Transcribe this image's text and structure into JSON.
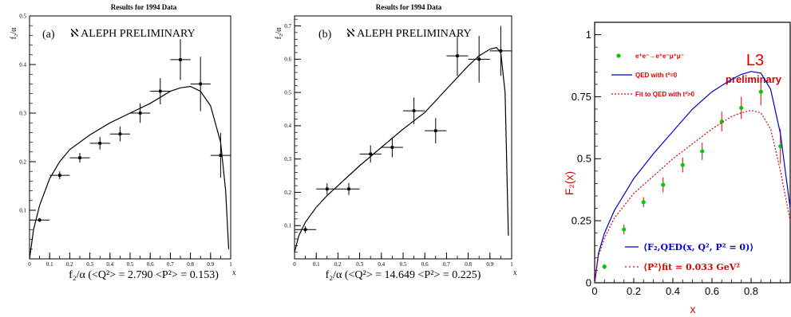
{
  "chart_data": [
    {
      "type": "scatter",
      "title": "Results for 1994 Data",
      "panel_label": "(a)",
      "experiment_label": "ℵ ALEPH PRELIMINARY",
      "xlabel": "x",
      "ylabel": "f₂/α",
      "axis_caption": "f₂/α (<Q²> =  2.790 <P²> = 0.153)",
      "xlim": [
        0,
        1
      ],
      "ylim": [
        0,
        0.5
      ],
      "x_ticks": [
        "0",
        "0.1",
        "0.2",
        "0.3",
        "0.4",
        "0.5",
        "0.6",
        "0.7",
        "0.8",
        "0.9",
        "1"
      ],
      "y_ticks": [
        "0.1",
        "0.2",
        "0.3",
        "0.4",
        "0.5"
      ],
      "series": [
        {
          "type": "points_with_errors",
          "x": [
            0.05,
            0.15,
            0.25,
            0.35,
            0.45,
            0.55,
            0.65,
            0.75,
            0.85,
            0.95
          ],
          "y": [
            0.08,
            0.172,
            0.208,
            0.238,
            0.257,
            0.3,
            0.345,
            0.41,
            0.36,
            0.213
          ],
          "xerr": [
            0.05,
            0.05,
            0.05,
            0.05,
            0.05,
            0.05,
            0.05,
            0.05,
            0.05,
            0.05
          ],
          "yerr": [
            0.004,
            0.008,
            0.01,
            0.013,
            0.015,
            0.02,
            0.027,
            0.042,
            0.056,
            0.046
          ]
        },
        {
          "type": "curve",
          "x": [
            0.0,
            0.02,
            0.05,
            0.1,
            0.15,
            0.2,
            0.3,
            0.4,
            0.5,
            0.6,
            0.7,
            0.75,
            0.8,
            0.85,
            0.9,
            0.95,
            0.975,
            0.99
          ],
          "y": [
            0.0,
            0.06,
            0.11,
            0.165,
            0.2,
            0.225,
            0.255,
            0.28,
            0.3,
            0.32,
            0.345,
            0.352,
            0.355,
            0.345,
            0.315,
            0.24,
            0.14,
            0.02
          ]
        }
      ]
    },
    {
      "type": "scatter",
      "title": "Results for 1994 Data",
      "panel_label": "(b)",
      "experiment_label": "ℵ ALEPH PRELIMINARY",
      "xlabel": "x",
      "ylabel": "f₂/α",
      "axis_caption": "f₂/α (<Q²> = 14.649 <P²> = 0.225)",
      "xlim": [
        0,
        1
      ],
      "ylim": [
        0,
        0.73
      ],
      "x_ticks": [
        "0",
        "0.1",
        "0.2",
        "0.3",
        "0.4",
        "0.5",
        "0.6",
        "0.7",
        "0.8",
        "0.9",
        "1"
      ],
      "y_ticks": [
        "0.1",
        "0.2",
        "0.3",
        "0.4",
        "0.5",
        "0.6",
        "0.7"
      ],
      "series": [
        {
          "type": "points_with_errors",
          "x": [
            0.05,
            0.15,
            0.25,
            0.35,
            0.45,
            0.55,
            0.65,
            0.75,
            0.85,
            0.95
          ],
          "y": [
            0.088,
            0.21,
            0.21,
            0.315,
            0.335,
            0.445,
            0.385,
            0.61,
            0.6,
            0.625
          ],
          "xerr": [
            0.05,
            0.05,
            0.05,
            0.05,
            0.05,
            0.05,
            0.05,
            0.05,
            0.05,
            0.05
          ],
          "yerr": [
            0.01,
            0.017,
            0.018,
            0.026,
            0.03,
            0.04,
            0.038,
            0.06,
            0.07,
            0.075
          ]
        },
        {
          "type": "curve",
          "x": [
            0.0,
            0.02,
            0.05,
            0.1,
            0.15,
            0.2,
            0.3,
            0.4,
            0.5,
            0.6,
            0.7,
            0.8,
            0.85,
            0.9,
            0.93,
            0.95,
            0.97,
            0.985
          ],
          "y": [
            0.02,
            0.07,
            0.11,
            0.155,
            0.19,
            0.22,
            0.28,
            0.335,
            0.39,
            0.44,
            0.51,
            0.58,
            0.61,
            0.63,
            0.635,
            0.62,
            0.5,
            0.07
          ]
        }
      ]
    },
    {
      "type": "scatter",
      "title": "",
      "experiment_label": "L3",
      "subtitle": "preliminary",
      "xlabel": "x",
      "ylabel": "F₂(x)",
      "xlim": [
        0,
        1
      ],
      "ylim": [
        0,
        1.05
      ],
      "x_ticks": [
        "0",
        "0.2",
        "0.4",
        "0.6",
        "0.8"
      ],
      "y_ticks": [
        "0",
        "0.25",
        "0.5",
        "0.75",
        "1"
      ],
      "legend_top": [
        {
          "marker": "dot",
          "label": "e⁺e⁻→e⁺e⁻μ⁺μ⁻",
          "color": "#00cc00"
        },
        {
          "marker": "solid-line",
          "label": "QED with t²=0",
          "color": "#0000cc"
        },
        {
          "marker": "dotted-line",
          "label": "Fit to QED with t²>0",
          "color": "#dd0000"
        }
      ],
      "legend_bottom": [
        {
          "marker": "solid-line",
          "label": "⟨F₂,QED(x, Q², P² = 0)⟩",
          "color": "#0000cc"
        },
        {
          "marker": "dotted-line",
          "label": "⟨P²⟩fit = 0.033 GeV²",
          "color": "#dd0000"
        }
      ],
      "series": [
        {
          "type": "points_with_errors",
          "color": "#00cc00",
          "error_color": "#dd0000",
          "x": [
            0.05,
            0.15,
            0.25,
            0.35,
            0.45,
            0.55,
            0.65,
            0.75,
            0.85,
            0.95
          ],
          "y": [
            0.065,
            0.215,
            0.325,
            0.395,
            0.475,
            0.53,
            0.65,
            0.705,
            0.77,
            0.55
          ],
          "yerr": [
            0.01,
            0.02,
            0.02,
            0.03,
            0.03,
            0.035,
            0.04,
            0.045,
            0.055,
            0.07
          ]
        },
        {
          "type": "curve",
          "name": "QED with t²=0",
          "color": "#0000cc",
          "x": [
            0.0,
            0.02,
            0.05,
            0.1,
            0.2,
            0.3,
            0.4,
            0.5,
            0.6,
            0.7,
            0.75,
            0.8,
            0.85,
            0.9,
            0.95,
            1.0
          ],
          "y": [
            0.0,
            0.12,
            0.2,
            0.29,
            0.42,
            0.52,
            0.61,
            0.7,
            0.77,
            0.82,
            0.84,
            0.852,
            0.845,
            0.78,
            0.6,
            0.3
          ]
        },
        {
          "type": "curve",
          "name": "Fit to QED with t²>0",
          "color": "#dd0000",
          "dashed": true,
          "x": [
            0.0,
            0.02,
            0.05,
            0.1,
            0.2,
            0.3,
            0.4,
            0.5,
            0.6,
            0.7,
            0.75,
            0.8,
            0.85,
            0.9,
            0.95,
            1.0
          ],
          "y": [
            0.0,
            0.11,
            0.18,
            0.26,
            0.36,
            0.43,
            0.5,
            0.56,
            0.62,
            0.67,
            0.685,
            0.695,
            0.685,
            0.62,
            0.45,
            0.25
          ]
        }
      ]
    }
  ]
}
